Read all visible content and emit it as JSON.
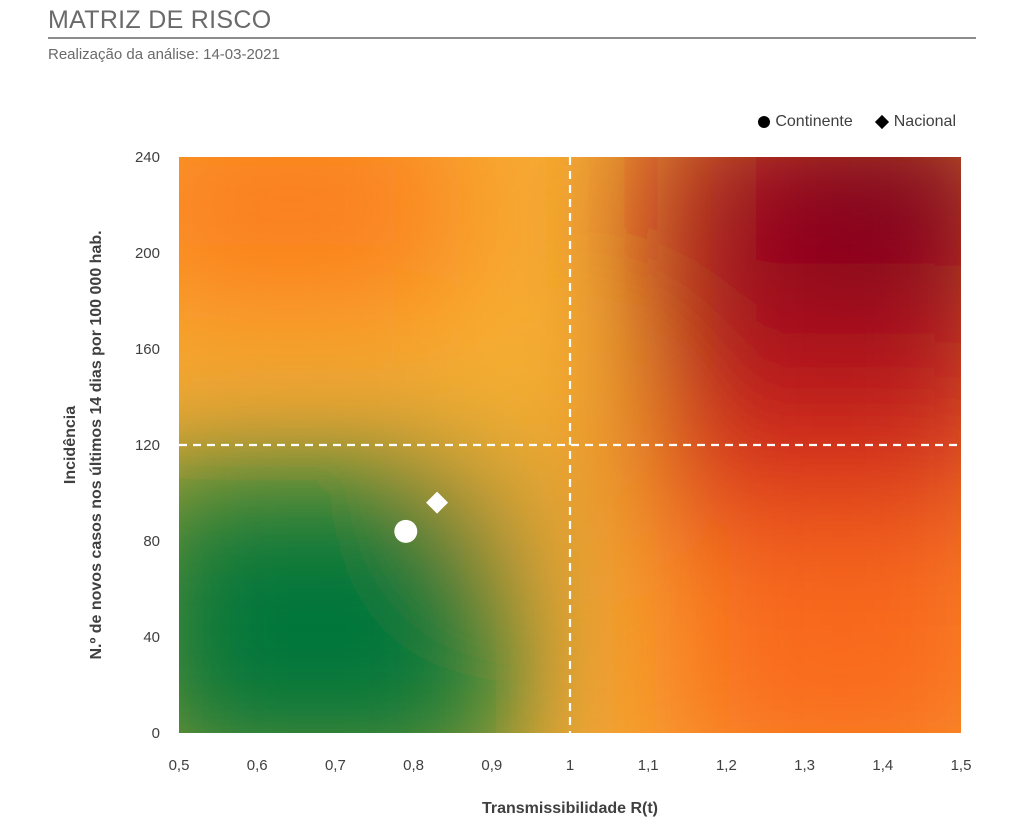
{
  "header": {
    "title": "MATRIZ DE RISCO",
    "subtitle": "Realização da análise: 14-03-2021"
  },
  "legend": {
    "continente": "Continente",
    "nacional": "Nacional"
  },
  "chart_data": {
    "type": "scatter",
    "title": "MATRIZ DE RISCO",
    "xlabel": "Transmissibilidade R(t)",
    "ylabel_line1": "Incidência",
    "ylabel_line2": "N.º de novos casos nos últimos 14 dias por 100 000 hab.",
    "xlim": [
      0.5,
      1.5
    ],
    "ylim": [
      0,
      240
    ],
    "x_ticks": [
      0.5,
      0.6,
      0.7,
      0.8,
      0.9,
      1,
      1.1,
      1.2,
      1.3,
      1.4,
      1.5
    ],
    "x_tick_labels": [
      "0,5",
      "0,6",
      "0,7",
      "0,8",
      "0,9",
      "1",
      "1,1",
      "1,2",
      "1,3",
      "1,4",
      "1,5"
    ],
    "y_ticks": [
      0,
      40,
      80,
      120,
      160,
      200,
      240
    ],
    "y_tick_labels": [
      "0",
      "40",
      "80",
      "120",
      "160",
      "200",
      "240"
    ],
    "thresholds": {
      "x": 1,
      "y": 120
    },
    "background": "green-yellow-orange-red risk gradient",
    "series": [
      {
        "name": "Continente",
        "marker": "circle",
        "x": 0.79,
        "y": 84
      },
      {
        "name": "Nacional",
        "marker": "diamond",
        "x": 0.83,
        "y": 96
      }
    ],
    "legend_position": "top-right",
    "grid": false,
    "colors": {
      "low": "#00763a",
      "mid": "#f7b133",
      "orange": "#f96a1c",
      "high": "#7a001e",
      "markers_on_plot": "#ffffff",
      "legend_markers": "#000000"
    }
  }
}
